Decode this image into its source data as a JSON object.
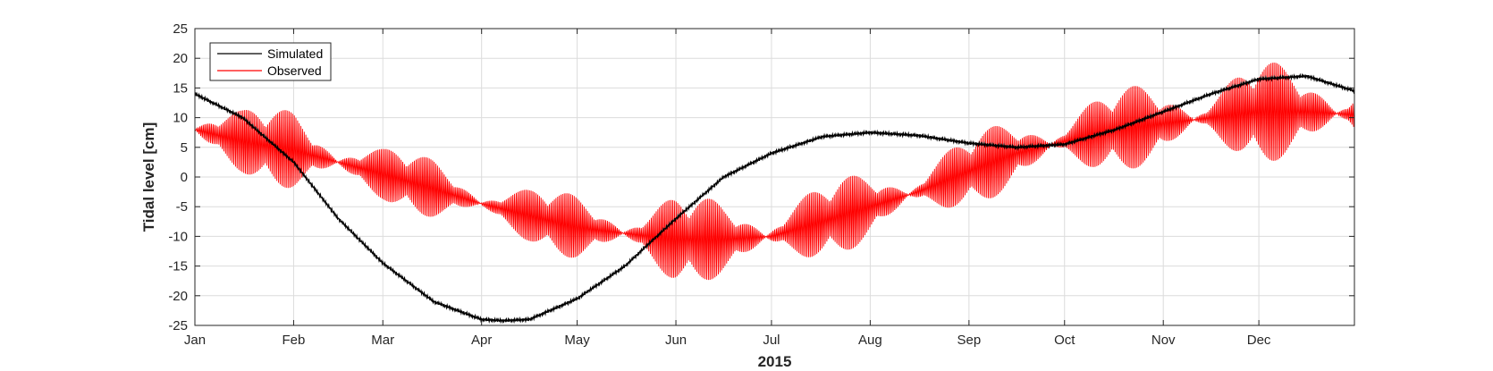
{
  "chart_data": {
    "type": "line",
    "title": "",
    "xlabel": "2015",
    "ylabel": "Tidal level [cm]",
    "x_range": [
      0,
      364
    ],
    "ylim": [
      -25,
      25
    ],
    "yticks": [
      -25,
      -20,
      -15,
      -10,
      -5,
      0,
      5,
      10,
      15,
      20,
      25
    ],
    "xtick_labels": [
      "Jan",
      "Feb",
      "Mar",
      "Apr",
      "May",
      "Jun",
      "Jul",
      "Aug",
      "Sep",
      "Oct",
      "Nov",
      "Dec"
    ],
    "xtick_days": [
      0,
      31,
      59,
      90,
      120,
      151,
      181,
      212,
      243,
      273,
      304,
      334
    ],
    "grid": true,
    "legend_position": "top-left",
    "series": [
      {
        "name": "Simulated",
        "color": "#000000",
        "x_day": [
          0,
          15,
          31,
          45,
          59,
          75,
          90,
          97,
          105,
          120,
          135,
          151,
          166,
          181,
          197,
          212,
          227,
          243,
          258,
          273,
          289,
          304,
          319,
          334,
          349,
          364
        ],
        "y": [
          14,
          10,
          2.5,
          -7,
          -14.5,
          -21,
          -24,
          -24.2,
          -24,
          -20.5,
          -15,
          -7,
          0,
          4,
          6.8,
          7.5,
          7,
          5.7,
          5,
          5.5,
          8,
          11,
          14,
          16.5,
          17,
          14.5
        ]
      },
      {
        "name": "Observed",
        "color": "#ff0000",
        "x_day": [
          0,
          15,
          31,
          45,
          59,
          75,
          90,
          105,
          120,
          135,
          151,
          166,
          181,
          197,
          212,
          227,
          243,
          258,
          273,
          289,
          304,
          319,
          334,
          349,
          364
        ],
        "mean": [
          8,
          6,
          4.5,
          2.5,
          0.5,
          -2,
          -4.5,
          -6.5,
          -8.5,
          -9.5,
          -10.5,
          -10.5,
          -10,
          -7.5,
          -5,
          -2.5,
          1,
          4,
          6,
          8,
          9,
          10,
          11,
          11,
          10.5
        ],
        "envelope_min": [
          1,
          0,
          -2,
          -4,
          -5,
          -8,
          -10,
          -12,
          -15,
          -16,
          -18,
          -17,
          -16,
          -14,
          -12,
          -9,
          -5,
          -2,
          0,
          1,
          2,
          3,
          2,
          3,
          1
        ],
        "envelope_max": [
          15,
          12,
          13,
          9,
          5,
          3,
          0,
          -2,
          -3,
          -4,
          -2,
          -3,
          -2,
          -1,
          1,
          4,
          7,
          11,
          14,
          15,
          17,
          17,
          20,
          18,
          18
        ]
      }
    ]
  }
}
